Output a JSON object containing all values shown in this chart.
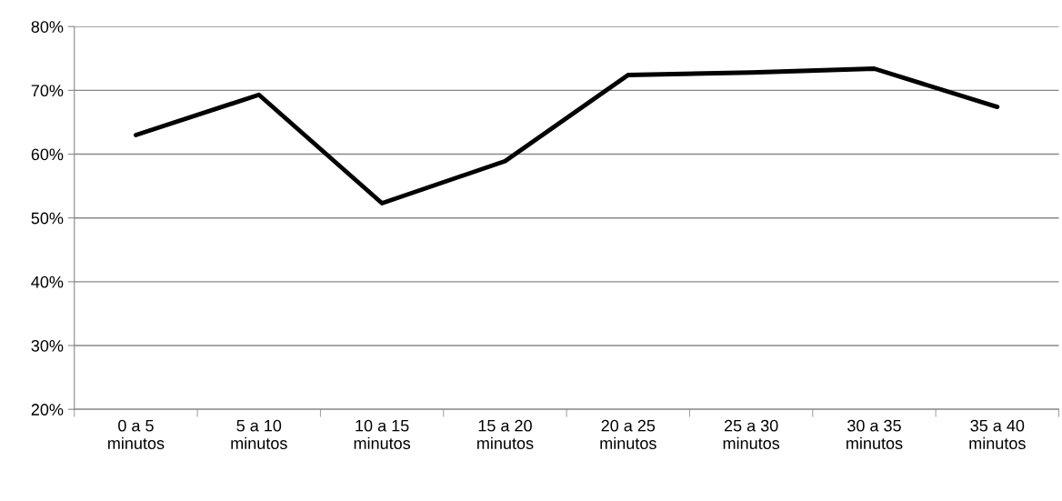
{
  "chart_data": {
    "type": "line",
    "categories": [
      "0 a 5\nminutos",
      "5 a 10\nminutos",
      "10 a 15\nminutos",
      "15 a 20\nminutos",
      "20 a 25\nminutos",
      "25 a 30\nminutos",
      "30 a 35\nminutos",
      "35 a 40\nminutos"
    ],
    "series": [
      {
        "color": "#000000",
        "values": [
          63.0,
          69.3,
          52.3,
          58.9,
          72.4,
          72.8,
          73.4,
          67.4
        ]
      }
    ],
    "ylim": [
      20,
      80
    ],
    "yticks": [
      {
        "value": 20,
        "label": "20%"
      },
      {
        "value": 30,
        "label": "30%"
      },
      {
        "value": 40,
        "label": "40%"
      },
      {
        "value": 50,
        "label": "50%"
      },
      {
        "value": 60,
        "label": "60%"
      },
      {
        "value": 70,
        "label": "70%"
      },
      {
        "value": 80,
        "label": "80%"
      }
    ],
    "grid": "y",
    "marker": "none",
    "line_style": "solid",
    "legend": false
  }
}
